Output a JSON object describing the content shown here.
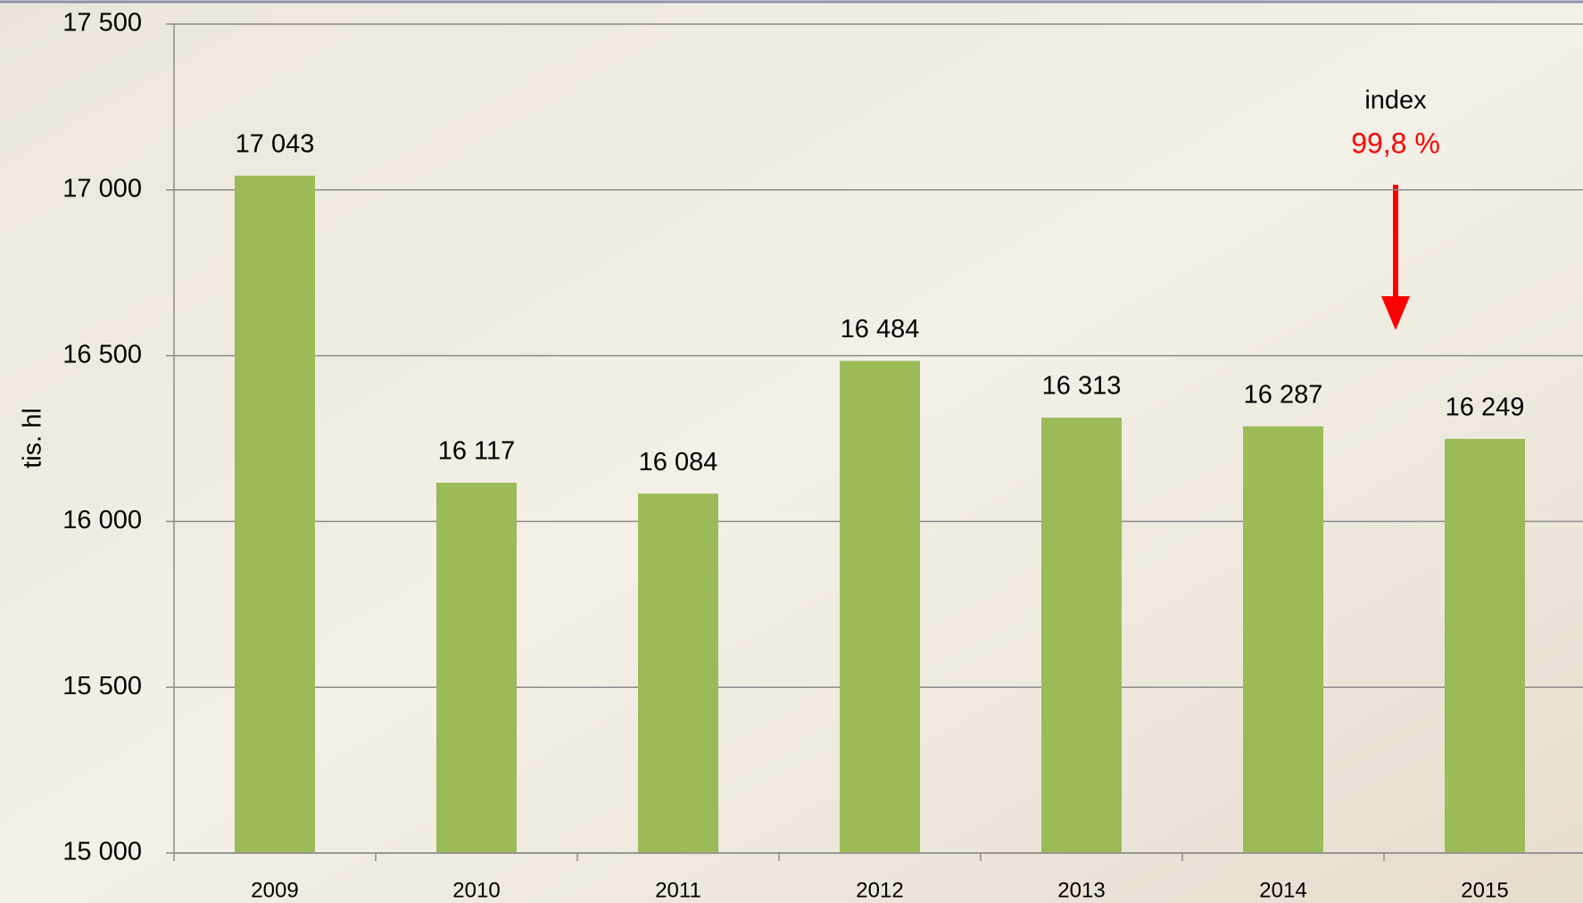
{
  "chart_data": {
    "type": "bar",
    "y_label": "tis. hl",
    "categories": [
      "2009",
      "2010",
      "2011",
      "2012",
      "2013",
      "2014",
      "2015"
    ],
    "values": [
      17043,
      16117,
      16084,
      16484,
      16313,
      16287,
      16249
    ],
    "value_labels": [
      "17 043",
      "16 117",
      "16 084",
      "16 484",
      "16 313",
      "16 287",
      "16 249"
    ],
    "color": "#9bbb59",
    "ylim": [
      15000,
      17500
    ],
    "yticks": [
      {
        "value": 15000,
        "label": "15 000"
      },
      {
        "value": 15500,
        "label": "15 500"
      },
      {
        "value": 16000,
        "label": "16 000"
      },
      {
        "value": 16500,
        "label": "16 500"
      },
      {
        "value": 17000,
        "label": "17 000"
      },
      {
        "value": 17500,
        "label": "17 500"
      }
    ],
    "grid": true,
    "annotations": [
      {
        "text": "index",
        "color": "#000000"
      },
      {
        "text": "99,8 %",
        "color": "#ff0000"
      }
    ]
  }
}
